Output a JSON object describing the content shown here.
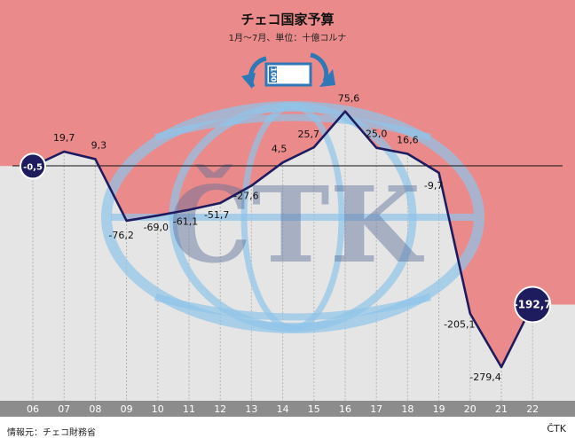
{
  "chart_data": {
    "type": "line",
    "title": "チェコ国家予算",
    "subtitle": "1月〜7月、単位：十億コルナ",
    "xlabel": "",
    "ylabel": "",
    "categories": [
      "06",
      "07",
      "08",
      "09",
      "10",
      "11",
      "12",
      "13",
      "14",
      "15",
      "16",
      "17",
      "18",
      "19",
      "20",
      "21",
      "22"
    ],
    "value_labels": [
      "-0,5",
      "19,7",
      "9,3",
      "-76,2",
      "-69,0",
      "-61,1",
      "-51,7",
      "-27,6",
      "4,5",
      "25,7",
      "75,6",
      "25,0",
      "16,6",
      "-9,7",
      "-205,1",
      "-279,4",
      "-192,7"
    ],
    "values": [
      -0.5,
      19.7,
      9.3,
      -76.2,
      -69.0,
      -61.1,
      -51.7,
      -27.6,
      4.5,
      25.7,
      75.6,
      25.0,
      16.6,
      -9.7,
      -205.1,
      -279.4,
      -192.7
    ],
    "ylim": [
      -300,
      95
    ],
    "grid": true,
    "legend": "none",
    "highlighted": [
      0,
      16
    ],
    "colors": {
      "line": "#1e1b5e",
      "negative_area": "#ea8a8a",
      "positive_area": "#e5e5e5",
      "gridline": "#b5b5b5",
      "axis_band": "#8c8c8c",
      "badge": "#1e1b5e",
      "watermark": "#8fc4ea"
    }
  },
  "watermark": {
    "icon": "ctk-globe-logo",
    "text": "ČTK"
  },
  "banknote": {
    "icon": "banknote-exchange-icon",
    "text": "100"
  },
  "footer": {
    "source": "情報元：チェコ財務省",
    "agency": "ČTK"
  }
}
